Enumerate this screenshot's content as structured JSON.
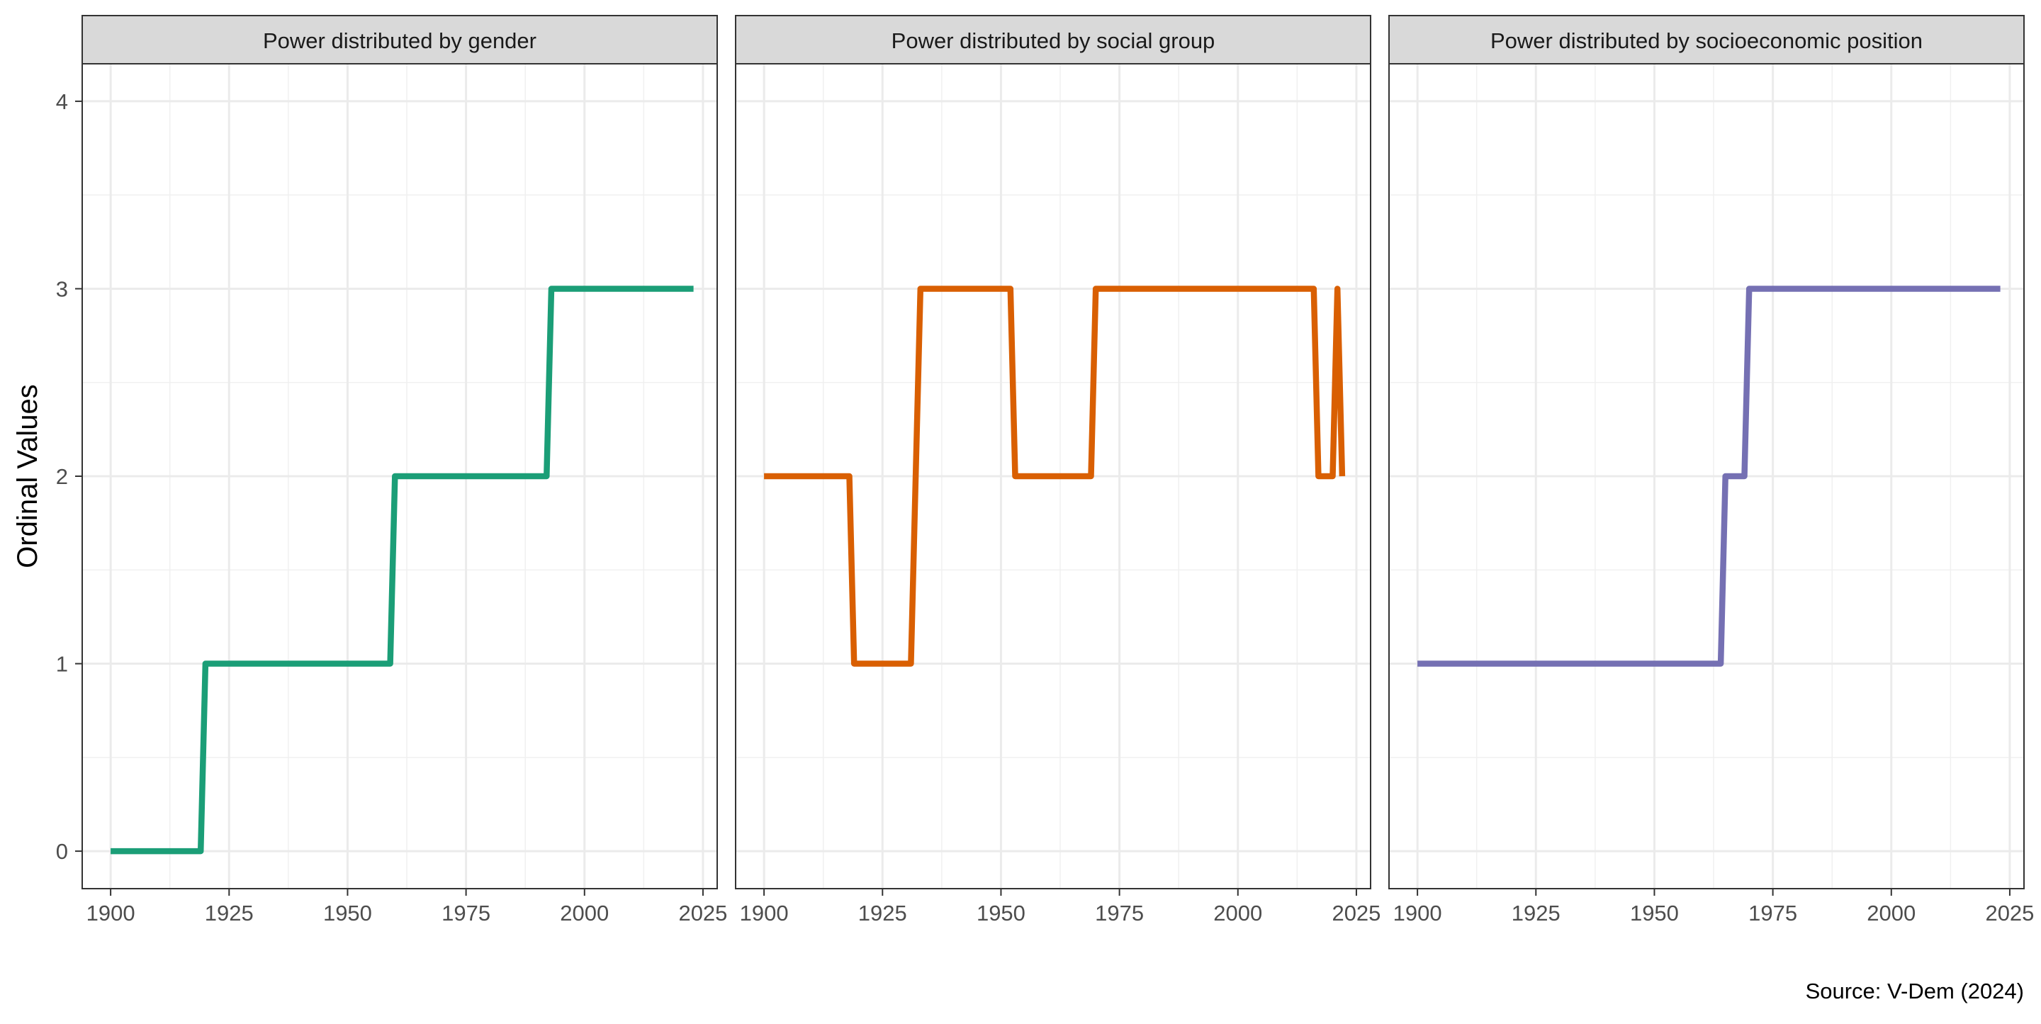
{
  "chart_data": {
    "type": "line",
    "ylabel": "Ordinal Values",
    "xlabel": "",
    "caption": "Source: V-Dem (2024)",
    "xlim": [
      1894,
      2028
    ],
    "ylim": [
      -0.2,
      4.2
    ],
    "x_ticks": [
      1900,
      1925,
      1950,
      1975,
      2000,
      2025
    ],
    "y_ticks": [
      0,
      1,
      2,
      3,
      4
    ],
    "grid": true,
    "panels": [
      {
        "title": "Power distributed by gender",
        "color": "#1B9E77",
        "x": [
          1900,
          1919,
          1920,
          1959,
          1960,
          1992,
          1993,
          2023
        ],
        "y": [
          0,
          0,
          1,
          1,
          2,
          2,
          3,
          3
        ]
      },
      {
        "title": "Power distributed by social group",
        "color": "#D95F02",
        "x": [
          1900,
          1918,
          1919,
          1931,
          1933,
          1952,
          1953,
          1969,
          1970,
          2016,
          2017,
          2020,
          2021,
          2022
        ],
        "y": [
          2,
          2,
          1,
          1,
          3,
          3,
          2,
          2,
          3,
          3,
          2,
          2,
          3,
          2
        ]
      },
      {
        "title": "Power distributed by socioeconomic position",
        "color": "#7570B3",
        "x": [
          1900,
          1964,
          1965,
          1969,
          1970,
          2023
        ],
        "y": [
          1,
          1,
          2,
          2,
          3,
          3
        ]
      }
    ]
  }
}
